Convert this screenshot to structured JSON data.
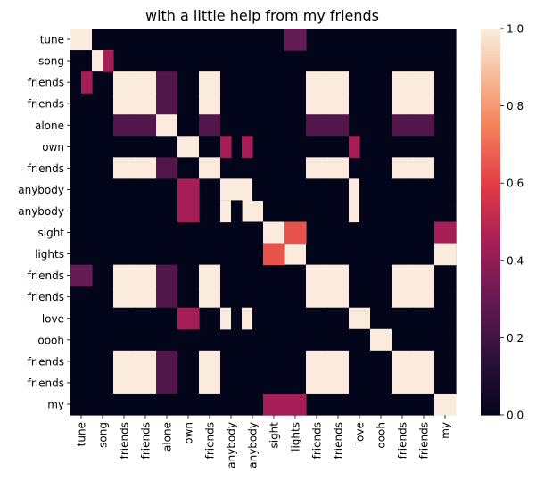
{
  "chart_data": {
    "type": "heatmap",
    "title": "with a little help from my friends",
    "labels": [
      "tune",
      "song",
      "friends",
      "friends",
      "alone",
      "own",
      "friends",
      "anybody",
      "anybody",
      "sight",
      "lights",
      "friends",
      "friends",
      "love",
      "oooh",
      "friends",
      "friends",
      "my"
    ],
    "x_tick_labels": [
      "tune",
      "song",
      "friends",
      "friends",
      "alone",
      "own",
      "friends",
      "anybody",
      "anybody",
      "sight",
      "lights",
      "friends",
      "friends",
      "love",
      "oooh",
      "friends",
      "friends",
      "my"
    ],
    "y_tick_labels": [
      "tune",
      "song",
      "friends",
      "friends",
      "alone",
      "own",
      "friends",
      "anybody",
      "anybody",
      "sight",
      "lights",
      "friends",
      "friends",
      "love",
      "oooh",
      "friends",
      "friends",
      "my"
    ],
    "x_tokens": [
      "tune",
      "song",
      "song",
      "friends",
      "friends",
      "friends",
      "friends",
      "alone",
      "own",
      "own",
      "friends",
      "friends",
      "friends",
      "anybody",
      "anybody",
      "anybody",
      "anybody",
      "anybody",
      "anybody",
      "sight",
      "lights",
      "lights",
      "friends",
      "friends",
      "friends",
      "friends",
      "love",
      "love",
      "love",
      "oooh",
      "friends",
      "friends",
      "friends",
      "friends",
      "friends",
      "friends",
      "my"
    ],
    "y_tokens": [
      "tune",
      "song",
      "song",
      "friends",
      "friends",
      "alone",
      "own",
      "friends",
      "anybody",
      "anybody",
      "anybody",
      "anybody",
      "sight",
      "lights",
      "friends",
      "friends",
      "love",
      "love",
      "oooh",
      "friends",
      "friends",
      "my"
    ],
    "values_note": "matrix rows = y_tokens, cols = x_tokens; values between 0 and 1",
    "values": [
      [
        1.0,
        0,
        0,
        0,
        0,
        0,
        0,
        0,
        0,
        0,
        0,
        0,
        0,
        0,
        0,
        0,
        0,
        0,
        0,
        0,
        0,
        0,
        0,
        0,
        0,
        0,
        0,
        0,
        0,
        0,
        0,
        0,
        0,
        0,
        0,
        0,
        0
      ],
      [
        0,
        1.0,
        0,
        0,
        0,
        0,
        0,
        0,
        0,
        0,
        0,
        0,
        0,
        0,
        0,
        0,
        0,
        0,
        0,
        0,
        0,
        0,
        0,
        0,
        0,
        0,
        0,
        0,
        0,
        0,
        0,
        0,
        0,
        0,
        0,
        0,
        0
      ],
      [
        0,
        0,
        1.0,
        0,
        0,
        0,
        0,
        0,
        0,
        0,
        0,
        0,
        0,
        0,
        0,
        0,
        0,
        0,
        0,
        0,
        0,
        0,
        0,
        0,
        0,
        0,
        0,
        0,
        0,
        0,
        0,
        0,
        0,
        0,
        0,
        0,
        0
      ],
      [
        0,
        0,
        0,
        1.0,
        1.0,
        1.0,
        1.0,
        0.25,
        0,
        0,
        1.0,
        1.0,
        1.0,
        0,
        0,
        0,
        0,
        0,
        0,
        0,
        0,
        0,
        1.0,
        1.0,
        1.0,
        1.0,
        0,
        0,
        0,
        0,
        1.0,
        1.0,
        1.0,
        1.0,
        1.0,
        1.0,
        0
      ],
      [
        0,
        0,
        0,
        1.0,
        1.0,
        1.0,
        1.0,
        0.25,
        0,
        0,
        1.0,
        1.0,
        1.0,
        0,
        0,
        0,
        0,
        0,
        0,
        0,
        0,
        0,
        1.0,
        1.0,
        1.0,
        1.0,
        0,
        0,
        0,
        0,
        1.0,
        1.0,
        1.0,
        1.0,
        1.0,
        1.0,
        0
      ],
      [
        0,
        0,
        0,
        0.25,
        0.25,
        0.25,
        0.25,
        1.0,
        0,
        0,
        0.25,
        0.25,
        0.25,
        0,
        0,
        0,
        0,
        0,
        0,
        0,
        0,
        0,
        0.25,
        0.25,
        0.25,
        0.25,
        0,
        0,
        0,
        0,
        0.25,
        0.25,
        0.25,
        0.25,
        0.25,
        0.25,
        0
      ],
      [
        0,
        0,
        0,
        0,
        0,
        0,
        0,
        0,
        1.0,
        0,
        0,
        0,
        0,
        0.45,
        0,
        0,
        0.45,
        0,
        0,
        0,
        0,
        0,
        0,
        0,
        0,
        0,
        0.45,
        0,
        0.45,
        0,
        0,
        0,
        0,
        0,
        0,
        0,
        0
      ],
      [
        0,
        0,
        0,
        1.0,
        1.0,
        1.0,
        1.0,
        0.25,
        0,
        0,
        1.0,
        1.0,
        1.0,
        0,
        0,
        0,
        0,
        0,
        0,
        0,
        0,
        0,
        1.0,
        1.0,
        1.0,
        1.0,
        0,
        0,
        0,
        0,
        1.0,
        1.0,
        1.0,
        1.0,
        1.0,
        1.0,
        0
      ],
      [
        0,
        0,
        0,
        0,
        0,
        0,
        0,
        0,
        0.45,
        0,
        0,
        0,
        0,
        1.0,
        0,
        1.0,
        0,
        0,
        0,
        0,
        0,
        0,
        0,
        0,
        0,
        0,
        1.0,
        0,
        1.0,
        0,
        0,
        0,
        0,
        0,
        0,
        0,
        0
      ],
      [
        0,
        0,
        0,
        0,
        0,
        0,
        0,
        0,
        0,
        0,
        0,
        0,
        0,
        0,
        1.0,
        0,
        1.0,
        0,
        0,
        0,
        0,
        0,
        0,
        0,
        0,
        0,
        0,
        1.0,
        0,
        0,
        0,
        0,
        0,
        0,
        0,
        0,
        0
      ],
      [
        0,
        0,
        0,
        0,
        0,
        0,
        0,
        0,
        0.45,
        0,
        0,
        0,
        0,
        1.0,
        0,
        1.0,
        0,
        1.0,
        0,
        0,
        0,
        0,
        0,
        0,
        0,
        0,
        1.0,
        0,
        1.0,
        0,
        0,
        0,
        0,
        0,
        0,
        0,
        0
      ],
      [
        0,
        0,
        0,
        0,
        0,
        0,
        0,
        0,
        0,
        0,
        0,
        0,
        0,
        0,
        1.0,
        0,
        0,
        0,
        1.0,
        0,
        0,
        0,
        0,
        0,
        0,
        0,
        0,
        1.0,
        0,
        0,
        0,
        0,
        0,
        0,
        0,
        0,
        0
      ],
      [
        0,
        0,
        0,
        0,
        0,
        0,
        0,
        0,
        0,
        0,
        0,
        0,
        0,
        0,
        0,
        0,
        0,
        0,
        0,
        1.0,
        0,
        0.65,
        0,
        0,
        0,
        0,
        0,
        0,
        0,
        0,
        0,
        0,
        0,
        0,
        0,
        0,
        0.45
      ],
      [
        0,
        0,
        0,
        0,
        0,
        0,
        0,
        0,
        0,
        0,
        0,
        0,
        0,
        0,
        0,
        0,
        0,
        0,
        0,
        0.65,
        1.0,
        0,
        0,
        0,
        0,
        0,
        0,
        0,
        0,
        0,
        0,
        0,
        0,
        0,
        0,
        0,
        1.0
      ],
      [
        0,
        0,
        0,
        1.0,
        1.0,
        1.0,
        1.0,
        0.25,
        0,
        0,
        1.0,
        1.0,
        1.0,
        0,
        0,
        0,
        0,
        0,
        0,
        0,
        0,
        0,
        1.0,
        1.0,
        1.0,
        1.0,
        0,
        0,
        0,
        0,
        1.0,
        1.0,
        1.0,
        1.0,
        1.0,
        1.0,
        0
      ],
      [
        0,
        0,
        0,
        1.0,
        1.0,
        1.0,
        1.0,
        0.25,
        0,
        0,
        1.0,
        1.0,
        1.0,
        0,
        0,
        0,
        0,
        0,
        0,
        0,
        0,
        0,
        1.0,
        1.0,
        1.0,
        1.0,
        0,
        0,
        0,
        0,
        1.0,
        1.0,
        1.0,
        1.0,
        1.0,
        1.0,
        0
      ],
      [
        0,
        0,
        0,
        0,
        0,
        0,
        0,
        0,
        0.45,
        0,
        0,
        0,
        0,
        1.0,
        0,
        1.0,
        0,
        0,
        0,
        0,
        0,
        0,
        0,
        0,
        0,
        0,
        1.0,
        0,
        1.0,
        0,
        0,
        0,
        0,
        0,
        0,
        0,
        0
      ],
      [
        0,
        0,
        0,
        0,
        0,
        0,
        0,
        0,
        0,
        0,
        0,
        0,
        0,
        0,
        1.0,
        0,
        1.0,
        0,
        0,
        0,
        0,
        0,
        0,
        0,
        0,
        0,
        0,
        1.0,
        0,
        0,
        0,
        0,
        0,
        0,
        0,
        0,
        0
      ],
      [
        0,
        0,
        0,
        0,
        0,
        0,
        0,
        0,
        0,
        0,
        0,
        0,
        0,
        0,
        0,
        0,
        0,
        0,
        0,
        0,
        0,
        0,
        0,
        0,
        0,
        0,
        0,
        0,
        0,
        1.0,
        0,
        0,
        0,
        0,
        0,
        0,
        0
      ],
      [
        0,
        0,
        0,
        1.0,
        1.0,
        1.0,
        1.0,
        0.25,
        0,
        0,
        1.0,
        1.0,
        1.0,
        0,
        0,
        0,
        0,
        0,
        0,
        0,
        0,
        0,
        1.0,
        1.0,
        1.0,
        1.0,
        0,
        0,
        0,
        0,
        1.0,
        1.0,
        1.0,
        1.0,
        1.0,
        1.0,
        0
      ],
      [
        0,
        0,
        0,
        1.0,
        1.0,
        1.0,
        1.0,
        0.25,
        0,
        0,
        1.0,
        1.0,
        1.0,
        0,
        0,
        0,
        0,
        0,
        0,
        0,
        0,
        0,
        1.0,
        1.0,
        1.0,
        1.0,
        0,
        0,
        0,
        0,
        1.0,
        1.0,
        1.0,
        1.0,
        1.0,
        1.0,
        0
      ],
      [
        0,
        0,
        0,
        0,
        0,
        0,
        0,
        0,
        0,
        0,
        0,
        0,
        0,
        0,
        0,
        0,
        0,
        0,
        0,
        0.45,
        0.45,
        0.45,
        0,
        0,
        0,
        0,
        0,
        0,
        0,
        0,
        0,
        0,
        0,
        0,
        0,
        0,
        1.0
      ]
    ],
    "extra_cells": [
      {
        "row": 0,
        "col": 21,
        "value": 0.3
      },
      {
        "row": 1,
        "col": 2,
        "value": 0.45
      },
      {
        "row": 2,
        "col": 1,
        "value": 0.45
      },
      {
        "row": 13,
        "col": 0,
        "value": 0.3
      }
    ],
    "colorbar": {
      "min": 0.0,
      "max": 1.0,
      "ticks": [
        "0.0",
        "0.2",
        "0.4",
        "0.6",
        "0.8",
        "1.0"
      ],
      "tick_values": [
        0.0,
        0.2,
        0.4,
        0.6,
        0.8,
        1.0
      ]
    },
    "colormap": "rocket",
    "grid": false
  }
}
